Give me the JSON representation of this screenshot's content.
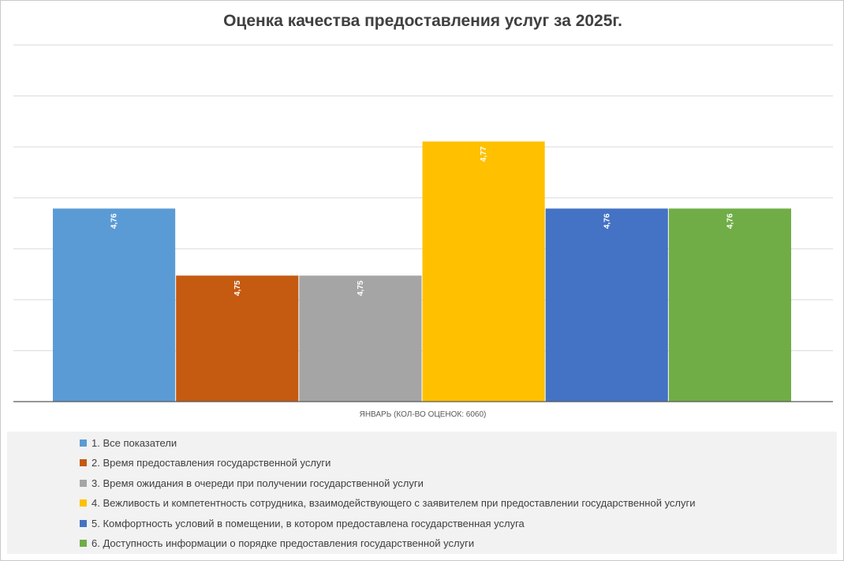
{
  "chart_data": {
    "type": "bar",
    "title": "Оценка качества предоставления услуг за 2025г.",
    "categories": [
      "ЯНВАРЬ (КОЛ-ВО ОЦЕНОК: 6060)"
    ],
    "series": [
      {
        "name": "1. Все показатели",
        "values": [
          4.76
        ],
        "label": "4,76",
        "color": "#5b9bd5"
      },
      {
        "name": "2. Время предоставления государственной услуги",
        "values": [
          4.75
        ],
        "label": "4,75",
        "color": "#c55a11"
      },
      {
        "name": "3. Время ожидания в очереди при получении государственной услуги",
        "values": [
          4.75
        ],
        "label": "4,75",
        "color": "#a5a5a5"
      },
      {
        "name": "4. Вежливость и компетентность сотрудника, взаимодействующего с заявителем при предоставлении государственной услуги",
        "values": [
          4.77
        ],
        "label": "4,77",
        "color": "#ffc000"
      },
      {
        "name": "5. Комфортность условий в помещении, в котором предоставлена государственная услуга",
        "values": [
          4.76
        ],
        "label": "4,76",
        "color": "#4472c4"
      },
      {
        "name": "6. Доступность информации о порядке предоставления государственной услуги",
        "values": [
          4.76
        ],
        "label": "4,76",
        "color": "#70ad47"
      }
    ],
    "ylim": [
      4.7312,
      4.7844
    ],
    "grid": true,
    "legend_position": "bottom"
  }
}
